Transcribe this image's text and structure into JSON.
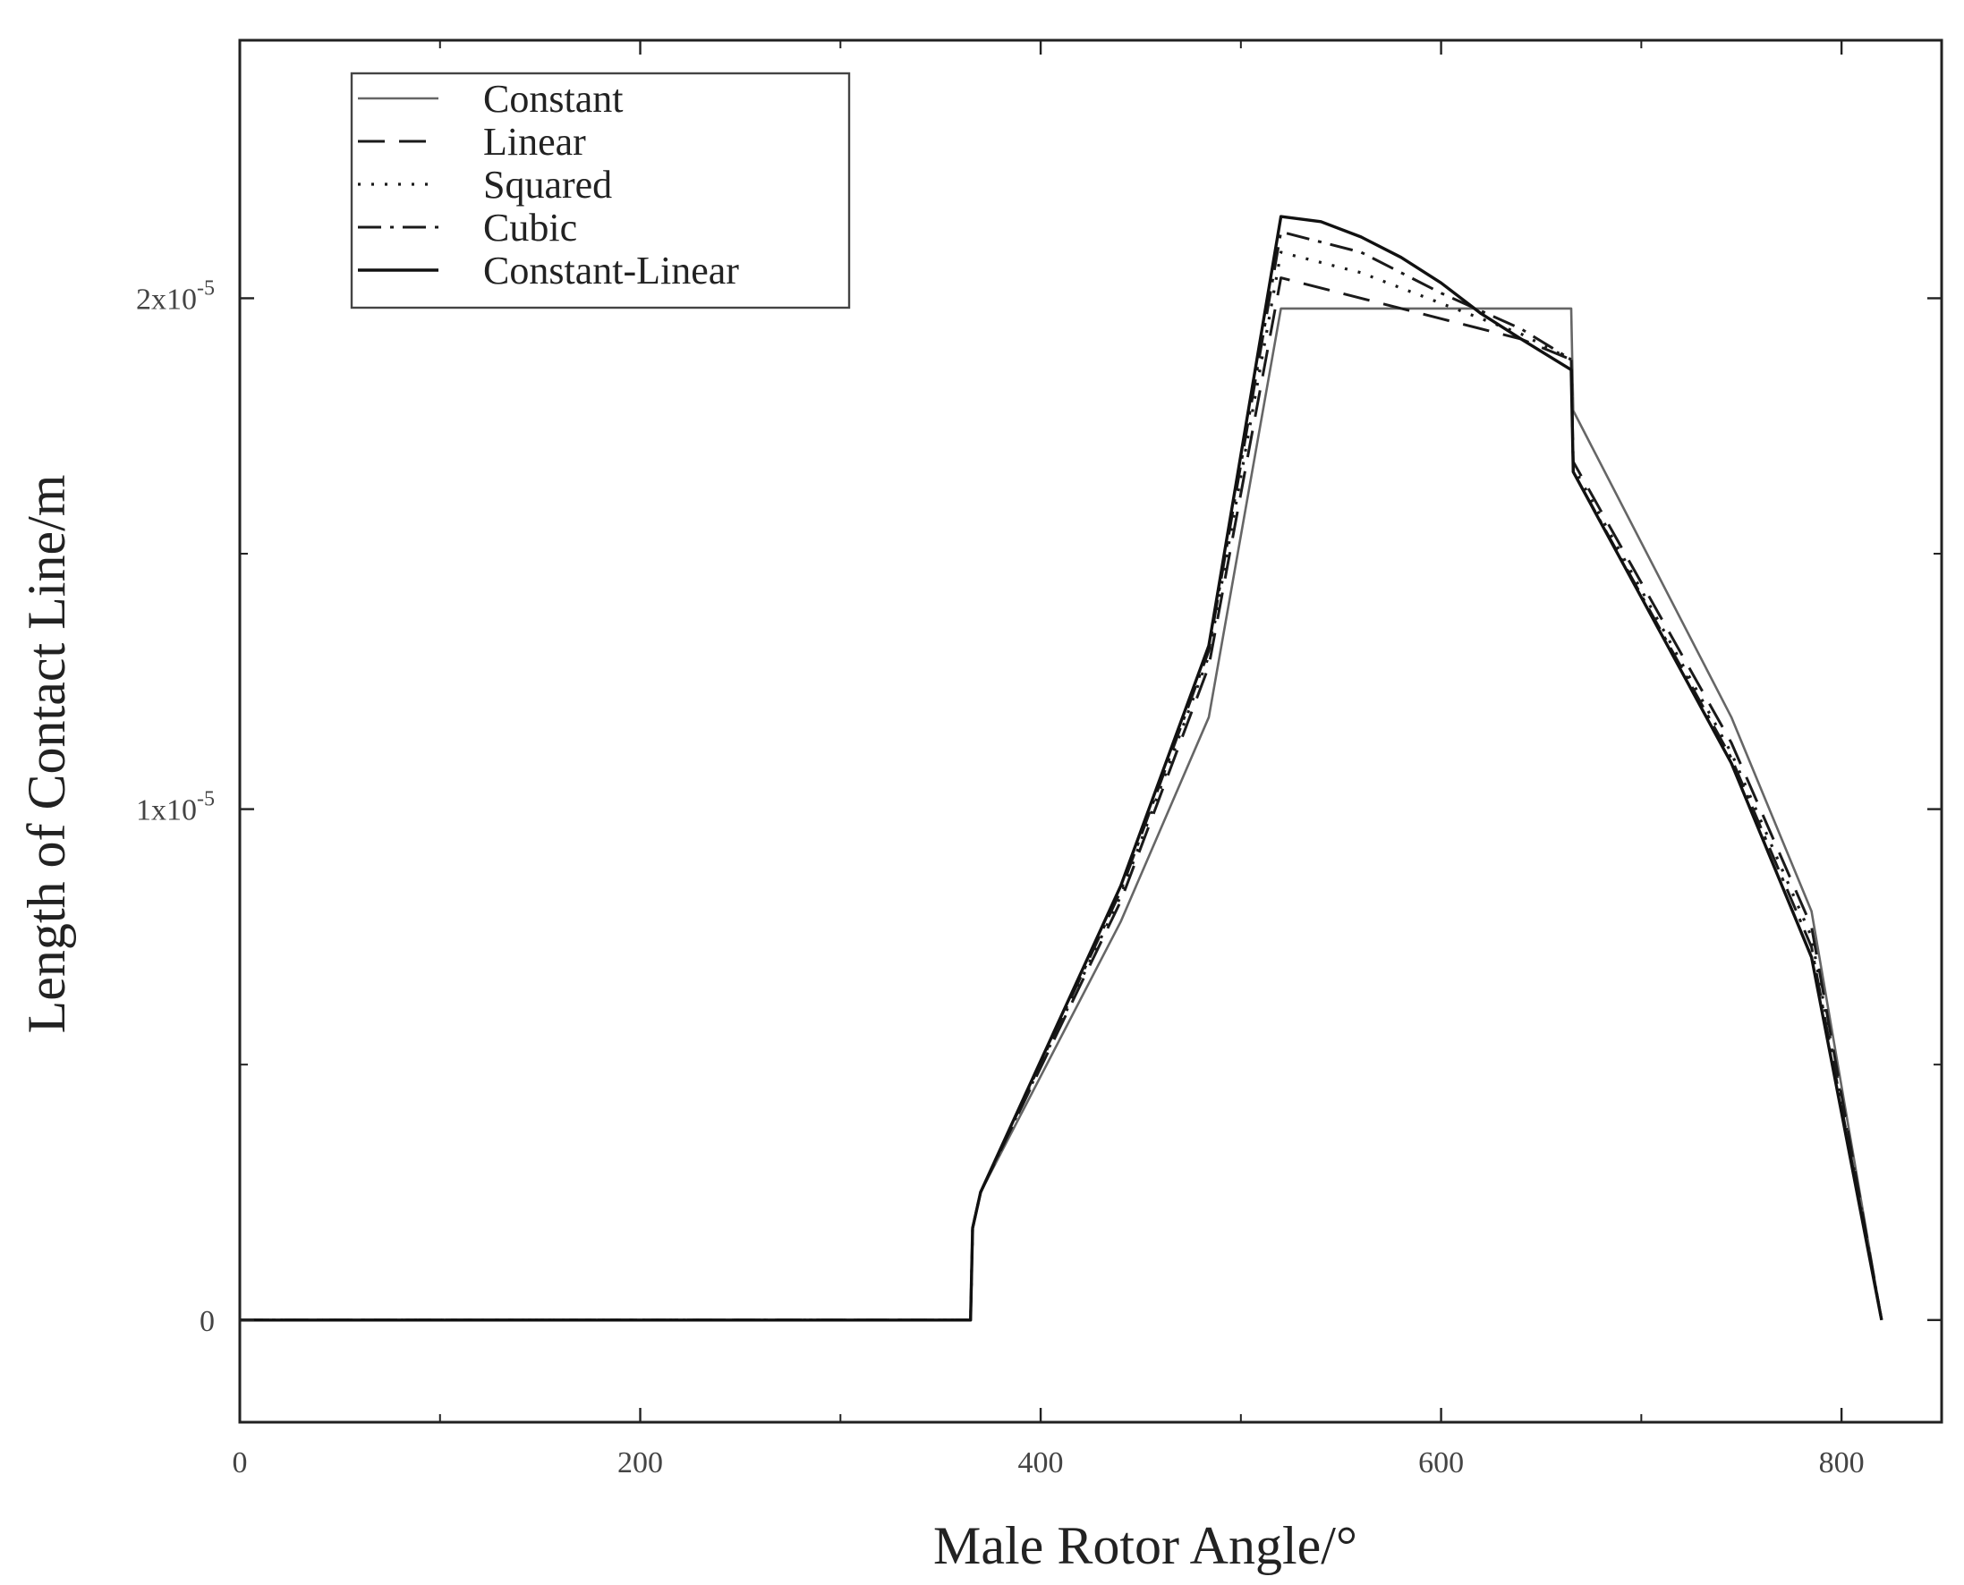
{
  "chart_data": {
    "type": "line",
    "title": "",
    "xlabel": "Male Rotor Angle/°",
    "ylabel": "Length of Contact Line/m",
    "xlim": [
      0,
      850
    ],
    "ylim": [
      -2e-06,
      2.505e-05
    ],
    "x_ticks": [
      {
        "value": 0,
        "label": "0"
      },
      {
        "value": 200,
        "label": "200"
      },
      {
        "value": 400,
        "label": "400"
      },
      {
        "value": 600,
        "label": "600"
      },
      {
        "value": 800,
        "label": "800"
      }
    ],
    "x_minor_ticks": [
      100,
      300,
      500,
      700
    ],
    "y_ticks": [
      {
        "value": 0,
        "label": "0",
        "exp": ""
      },
      {
        "value": 1e-05,
        "label": "1x10",
        "exp": "-5"
      },
      {
        "value": 2e-05,
        "label": "2x10",
        "exp": "-5"
      }
    ],
    "y_minor_ticks": [
      5e-06,
      1.5e-05
    ],
    "legend": {
      "position": "top-left"
    },
    "grid": false,
    "series": [
      {
        "name": "Constant",
        "color": "#666666",
        "dash": "",
        "width": 2.6,
        "x": [
          0,
          365,
          366,
          370,
          440,
          484,
          520,
          665,
          666,
          745,
          785,
          820
        ],
        "y": [
          0,
          0,
          1.8e-06,
          2.5e-06,
          7.8e-06,
          1.18e-05,
          1.98e-05,
          1.98e-05,
          1.78e-05,
          1.18e-05,
          8e-06,
          0
        ]
      },
      {
        "name": "Linear",
        "color": "#1a1a1a",
        "dash": "30,16",
        "width": 3,
        "x": [
          0,
          365,
          366,
          370,
          440,
          484,
          520,
          560,
          600,
          640,
          665,
          666,
          745,
          785,
          820
        ],
        "y": [
          0,
          0,
          1.8e-06,
          2.5e-06,
          8.2e-06,
          1.28e-05,
          2.04e-05,
          2e-05,
          1.96e-05,
          1.92e-05,
          1.88e-05,
          1.68e-05,
          1.13e-05,
          7.7e-06,
          0
        ]
      },
      {
        "name": "Squared",
        "color": "#1a1a1a",
        "dash": "3,12",
        "width": 3.2,
        "x": [
          0,
          365,
          366,
          370,
          440,
          484,
          520,
          560,
          600,
          640,
          665,
          666,
          745,
          785,
          820
        ],
        "y": [
          0,
          0,
          1.8e-06,
          2.5e-06,
          8.3e-06,
          1.3e-05,
          2.09e-05,
          2.05e-05,
          1.99e-05,
          1.93e-05,
          1.88e-05,
          1.67e-05,
          1.11e-05,
          7.5e-06,
          0
        ]
      },
      {
        "name": "Cubic",
        "color": "#1a1a1a",
        "dash": "26,10,4,10",
        "width": 3,
        "x": [
          0,
          365,
          366,
          370,
          440,
          484,
          520,
          560,
          600,
          640,
          665,
          666,
          745,
          785,
          820
        ],
        "y": [
          0,
          0,
          1.8e-06,
          2.5e-06,
          8.4e-06,
          1.31e-05,
          2.13e-05,
          2.09e-05,
          2.01e-05,
          1.94e-05,
          1.88e-05,
          1.66e-05,
          1.1e-05,
          7.3e-06,
          0
        ]
      },
      {
        "name": "Constant-Linear",
        "color": "#111111",
        "dash": "",
        "width": 3.4,
        "x": [
          0,
          365,
          366,
          370,
          440,
          484,
          520,
          540,
          560,
          580,
          600,
          620,
          640,
          665,
          666,
          745,
          785,
          820
        ],
        "y": [
          0,
          0,
          1.8e-06,
          2.5e-06,
          8.5e-06,
          1.32e-05,
          2.16e-05,
          2.15e-05,
          2.12e-05,
          2.08e-05,
          2.03e-05,
          1.97e-05,
          1.92e-05,
          1.86e-05,
          1.66e-05,
          1.09e-05,
          7.1e-06,
          0
        ]
      }
    ]
  }
}
